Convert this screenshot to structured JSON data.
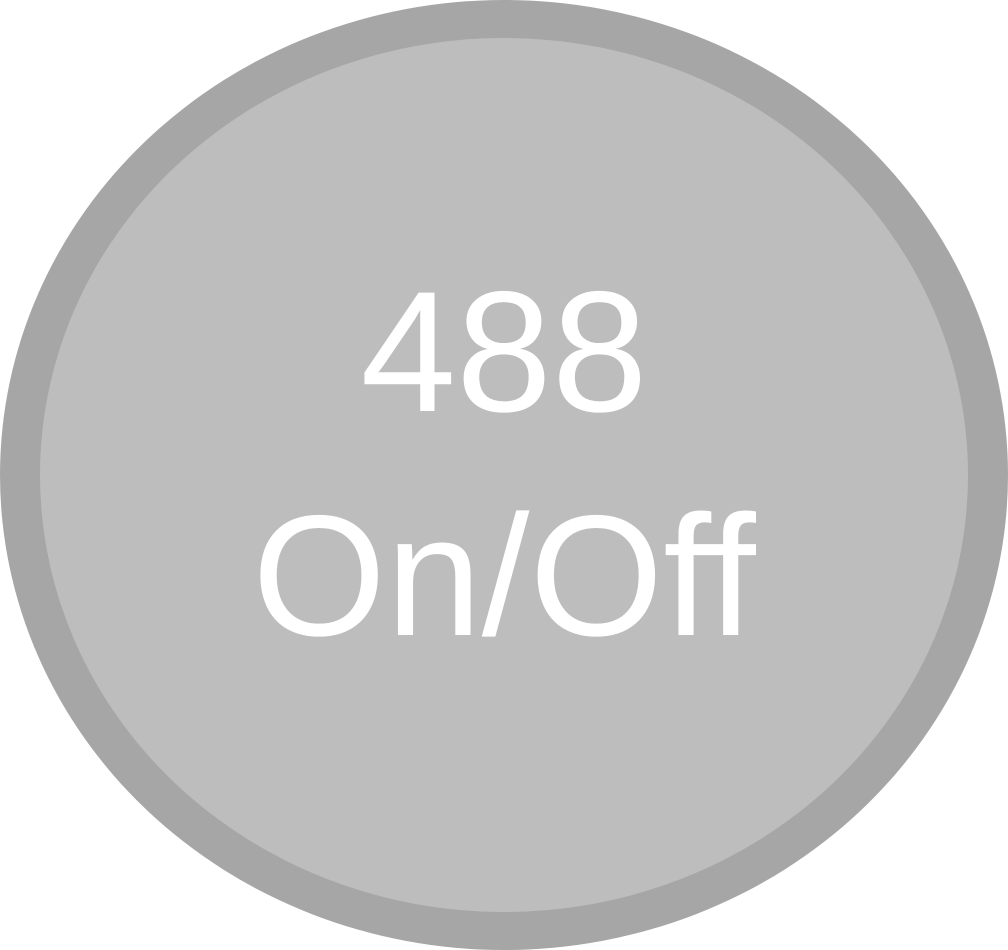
{
  "toggle": {
    "value_label": "488",
    "action_label": "On/Off"
  },
  "colors": {
    "ring": "#a6a6a6",
    "fill": "#bdbdbd",
    "text": "#ffffff"
  }
}
